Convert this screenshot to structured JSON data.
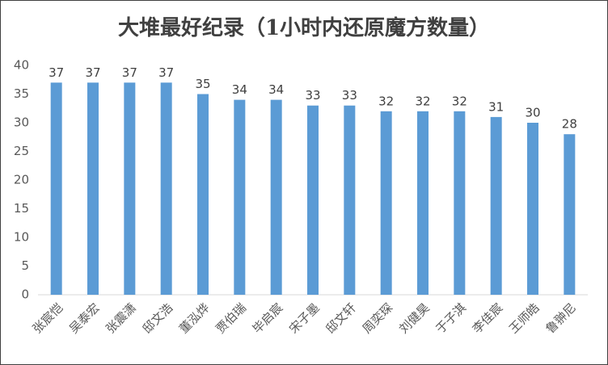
{
  "chart_data": {
    "type": "bar",
    "title": "大堆最好纪录（1小时内还原魔方数量）",
    "categories": [
      "张宸恺",
      "吴泰宏",
      "张震潇",
      "邸文浩",
      "董泓烨",
      "贾伯瑞",
      "毕启宸",
      "宋子墨",
      "邸文轩",
      "周奕琛",
      "刘健昊",
      "于子淇",
      "李佳宸",
      "王师皓",
      "鲁翀尼"
    ],
    "values": [
      37,
      37,
      37,
      37,
      35,
      34,
      34,
      33,
      33,
      32,
      32,
      32,
      31,
      30,
      28
    ],
    "color": "#5b9bd5",
    "ylim": [
      0,
      40
    ],
    "yticks": [
      0,
      5,
      10,
      15,
      20,
      25,
      30,
      35,
      40
    ],
    "grid": false
  }
}
